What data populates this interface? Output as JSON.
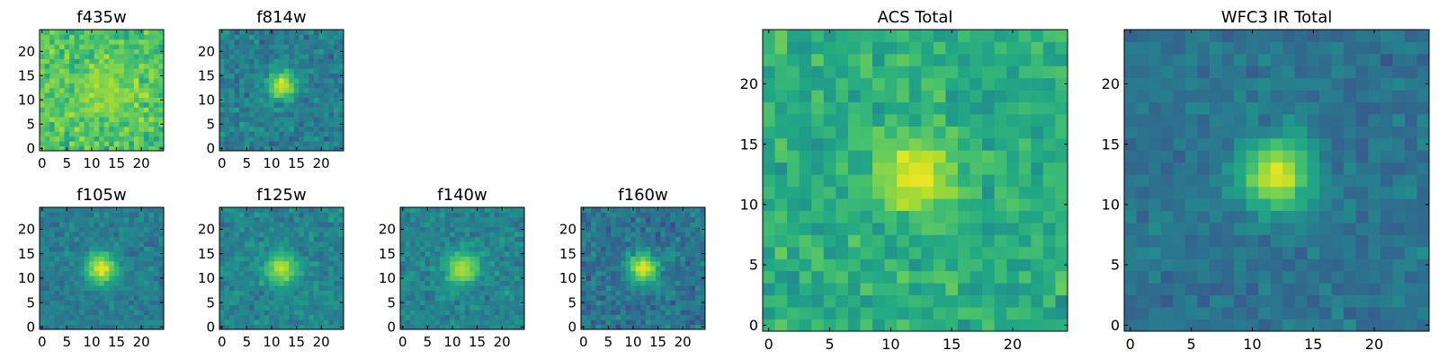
{
  "chart_data": [
    {
      "type": "heatmap",
      "title": "f435w",
      "x_ticks": [
        "0",
        "5",
        "10",
        "15",
        "20"
      ],
      "y_ticks": [
        "0",
        "5",
        "10",
        "15",
        "20"
      ],
      "xlim": [
        0,
        25
      ],
      "ylim": [
        0,
        25
      ],
      "grid_size": 25,
      "colormap": "viridis",
      "source_sigma": 4.0,
      "source_center": [
        12,
        12
      ],
      "peak_level": 0.85,
      "background_level": 0.72,
      "noise_level": 0.22
    },
    {
      "type": "heatmap",
      "title": "f814w",
      "x_ticks": [
        "0",
        "5",
        "10",
        "15",
        "20"
      ],
      "y_ticks": [
        "0",
        "5",
        "10",
        "15",
        "20"
      ],
      "xlim": [
        0,
        25
      ],
      "ylim": [
        0,
        25
      ],
      "grid_size": 25,
      "colormap": "viridis",
      "source_sigma": 2.0,
      "source_center": [
        12,
        13
      ],
      "peak_level": 0.95,
      "background_level": 0.42,
      "noise_level": 0.2
    },
    {
      "type": "heatmap",
      "title": "f105w",
      "x_ticks": [
        "0",
        "5",
        "10",
        "15",
        "20"
      ],
      "y_ticks": [
        "0",
        "5",
        "10",
        "15",
        "20"
      ],
      "xlim": [
        0,
        25
      ],
      "ylim": [
        0,
        25
      ],
      "grid_size": 25,
      "colormap": "viridis",
      "source_sigma": 2.3,
      "source_center": [
        12,
        12
      ],
      "peak_level": 0.95,
      "background_level": 0.42,
      "noise_level": 0.15
    },
    {
      "type": "heatmap",
      "title": "f125w",
      "x_ticks": [
        "0",
        "5",
        "10",
        "15",
        "20"
      ],
      "y_ticks": [
        "0",
        "5",
        "10",
        "15",
        "20"
      ],
      "xlim": [
        0,
        25
      ],
      "ylim": [
        0,
        25
      ],
      "grid_size": 25,
      "colormap": "viridis",
      "source_sigma": 2.3,
      "source_center": [
        12,
        12
      ],
      "peak_level": 0.92,
      "background_level": 0.45,
      "noise_level": 0.17
    },
    {
      "type": "heatmap",
      "title": "f140w",
      "x_ticks": [
        "0",
        "5",
        "10",
        "15",
        "20"
      ],
      "y_ticks": [
        "0",
        "5",
        "10",
        "15",
        "20"
      ],
      "xlim": [
        0,
        25
      ],
      "ylim": [
        0,
        25
      ],
      "grid_size": 25,
      "colormap": "viridis",
      "source_sigma": 2.3,
      "source_center": [
        12,
        12
      ],
      "peak_level": 0.9,
      "background_level": 0.45,
      "noise_level": 0.17
    },
    {
      "type": "heatmap",
      "title": "f160w",
      "x_ticks": [
        "0",
        "5",
        "10",
        "15",
        "20"
      ],
      "y_ticks": [
        "0",
        "5",
        "10",
        "15",
        "20"
      ],
      "xlim": [
        0,
        25
      ],
      "ylim": [
        0,
        25
      ],
      "grid_size": 25,
      "colormap": "viridis",
      "source_sigma": 2.2,
      "source_center": [
        12,
        12
      ],
      "peak_level": 0.95,
      "background_level": 0.38,
      "noise_level": 0.2
    },
    {
      "type": "heatmap",
      "title": "ACS Total",
      "x_ticks": [
        "0",
        "5",
        "10",
        "15",
        "20"
      ],
      "y_ticks": [
        "0",
        "5",
        "10",
        "15",
        "20"
      ],
      "xlim": [
        0,
        25
      ],
      "ylim": [
        0,
        25
      ],
      "grid_size": 25,
      "colormap": "viridis",
      "source_sigma": 2.3,
      "source_center": [
        12,
        12.5
      ],
      "peak_level": 0.97,
      "background_level": 0.62,
      "noise_level": 0.18
    },
    {
      "type": "heatmap",
      "title": "WFC3 IR Total",
      "x_ticks": [
        "0",
        "5",
        "10",
        "15",
        "20"
      ],
      "y_ticks": [
        "0",
        "5",
        "10",
        "15",
        "20"
      ],
      "xlim": [
        0,
        25
      ],
      "ylim": [
        0,
        25
      ],
      "grid_size": 25,
      "colormap": "viridis",
      "source_sigma": 2.1,
      "source_center": [
        12,
        12.5
      ],
      "peak_level": 0.95,
      "background_level": 0.38,
      "noise_level": 0.13
    }
  ]
}
